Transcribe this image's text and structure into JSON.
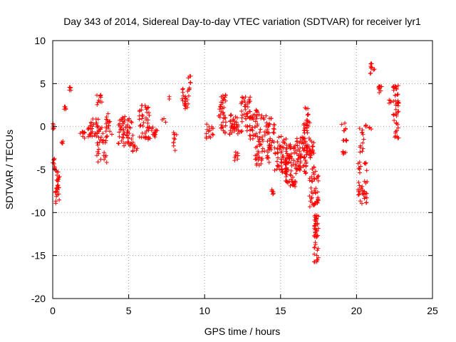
{
  "chart_data": {
    "type": "scatter",
    "title": "Day 343 of 2014, Sidereal Day-to-day VTEC variation (SDTVAR) for receiver lyr1",
    "xlabel": "GPS time / hours",
    "ylabel": "SDTVAR / TECUs",
    "xlim": [
      0,
      25
    ],
    "ylim": [
      -20,
      10
    ],
    "xticks": [
      0,
      5,
      10,
      15,
      20,
      25
    ],
    "yticks": [
      -20,
      -15,
      -10,
      -5,
      0,
      5,
      10
    ],
    "grid": true,
    "marker": "+",
    "color": "#ff0000",
    "series_name": "SDTVAR",
    "clusters": [
      {
        "x": [
          0.0,
          0.1
        ],
        "y": [
          -0.5,
          0.5
        ],
        "n": 6
      },
      {
        "x": [
          0.0,
          0.15
        ],
        "y": [
          -5.0,
          -3.5
        ],
        "n": 10
      },
      {
        "x": [
          0.15,
          0.45
        ],
        "y": [
          -9.0,
          -5.0
        ],
        "n": 30
      },
      {
        "x": [
          0.55,
          0.7
        ],
        "y": [
          -2.0,
          -1.2
        ],
        "n": 4
      },
      {
        "x": [
          0.75,
          0.95
        ],
        "y": [
          2.0,
          2.5
        ],
        "n": 5
      },
      {
        "x": [
          1.05,
          1.2
        ],
        "y": [
          4.2,
          5.1
        ],
        "n": 5
      },
      {
        "x": [
          1.8,
          2.2
        ],
        "y": [
          -1.5,
          -0.1
        ],
        "n": 8
      },
      {
        "x": [
          2.2,
          3.0
        ],
        "y": [
          -1.2,
          1.0
        ],
        "n": 30
      },
      {
        "x": [
          2.9,
          3.3
        ],
        "y": [
          2.5,
          3.8
        ],
        "n": 10
      },
      {
        "x": [
          2.9,
          3.6
        ],
        "y": [
          -4.5,
          0.0
        ],
        "n": 35
      },
      {
        "x": [
          3.5,
          3.9
        ],
        "y": [
          -1.0,
          1.5
        ],
        "n": 15
      },
      {
        "x": [
          4.3,
          5.2
        ],
        "y": [
          -2.5,
          1.2
        ],
        "n": 55
      },
      {
        "x": [
          5.2,
          5.6
        ],
        "y": [
          -3.0,
          -1.0
        ],
        "n": 10
      },
      {
        "x": [
          5.7,
          6.4
        ],
        "y": [
          -1.5,
          2.5
        ],
        "n": 40
      },
      {
        "x": [
          6.2,
          6.9
        ],
        "y": [
          -1.5,
          0.5
        ],
        "n": 20
      },
      {
        "x": [
          7.2,
          7.5
        ],
        "y": [
          0.5,
          1.0
        ],
        "n": 3
      },
      {
        "x": [
          7.6,
          7.8
        ],
        "y": [
          3.2,
          3.5
        ],
        "n": 2
      },
      {
        "x": [
          7.9,
          8.2
        ],
        "y": [
          -2.8,
          0.0
        ],
        "n": 10
      },
      {
        "x": [
          8.5,
          9.0
        ],
        "y": [
          2.0,
          4.5
        ],
        "n": 25
      },
      {
        "x": [
          8.9,
          9.1
        ],
        "y": [
          4.5,
          6.2
        ],
        "n": 6
      },
      {
        "x": [
          10.1,
          10.6
        ],
        "y": [
          -1.7,
          0.5
        ],
        "n": 15
      },
      {
        "x": [
          10.9,
          11.4
        ],
        "y": [
          1.0,
          3.9
        ],
        "n": 25
      },
      {
        "x": [
          11.0,
          11.5
        ],
        "y": [
          -1.0,
          1.0
        ],
        "n": 12
      },
      {
        "x": [
          11.6,
          12.5
        ],
        "y": [
          -1.0,
          1.5
        ],
        "n": 40
      },
      {
        "x": [
          11.9,
          12.2
        ],
        "y": [
          -4.0,
          -2.5
        ],
        "n": 8
      },
      {
        "x": [
          12.4,
          13.0
        ],
        "y": [
          1.0,
          3.5
        ],
        "n": 25
      },
      {
        "x": [
          12.7,
          13.5
        ],
        "y": [
          -1.5,
          2.0
        ],
        "n": 40
      },
      {
        "x": [
          13.3,
          14.3
        ],
        "y": [
          -4.5,
          1.5
        ],
        "n": 70
      },
      {
        "x": [
          14.2,
          14.6
        ],
        "y": [
          -3.0,
          1.0
        ],
        "n": 20
      },
      {
        "x": [
          14.6,
          15.4
        ],
        "y": [
          -5.5,
          -1.0
        ],
        "n": 55
      },
      {
        "x": [
          14.4,
          14.6
        ],
        "y": [
          -8.3,
          -7.0
        ],
        "n": 6
      },
      {
        "x": [
          15.3,
          16.0
        ],
        "y": [
          -7.0,
          -2.0
        ],
        "n": 70
      },
      {
        "x": [
          16.0,
          16.7
        ],
        "y": [
          -5.5,
          -1.0
        ],
        "n": 60
      },
      {
        "x": [
          16.5,
          17.0
        ],
        "y": [
          -4.0,
          0.5
        ],
        "n": 40
      },
      {
        "x": [
          16.6,
          16.9
        ],
        "y": [
          0.5,
          2.5
        ],
        "n": 10
      },
      {
        "x": [
          16.9,
          17.2
        ],
        "y": [
          -3.5,
          -1.5
        ],
        "n": 12
      },
      {
        "x": [
          16.9,
          17.5
        ],
        "y": [
          -9.5,
          -4.5
        ],
        "n": 45
      },
      {
        "x": [
          17.2,
          17.5
        ],
        "y": [
          -16.3,
          -10.0
        ],
        "n": 45
      },
      {
        "x": [
          19.0,
          19.3
        ],
        "y": [
          -0.5,
          0.5
        ],
        "n": 6
      },
      {
        "x": [
          19.1,
          19.4
        ],
        "y": [
          -3.3,
          -1.5
        ],
        "n": 10
      },
      {
        "x": [
          20.1,
          20.7
        ],
        "y": [
          -9.0,
          -4.0
        ],
        "n": 40
      },
      {
        "x": [
          20.2,
          20.5
        ],
        "y": [
          -3.0,
          0.0
        ],
        "n": 12
      },
      {
        "x": [
          20.5,
          21.0
        ],
        "y": [
          -0.3,
          0.5
        ],
        "n": 6
      },
      {
        "x": [
          20.9,
          21.2
        ],
        "y": [
          6.0,
          7.5
        ],
        "n": 10
      },
      {
        "x": [
          21.4,
          21.7
        ],
        "y": [
          3.7,
          4.7
        ],
        "n": 10
      },
      {
        "x": [
          22.1,
          22.4
        ],
        "y": [
          2.7,
          3.1
        ],
        "n": 4
      },
      {
        "x": [
          22.4,
          22.8
        ],
        "y": [
          -1.5,
          4.8
        ],
        "n": 45
      }
    ]
  }
}
